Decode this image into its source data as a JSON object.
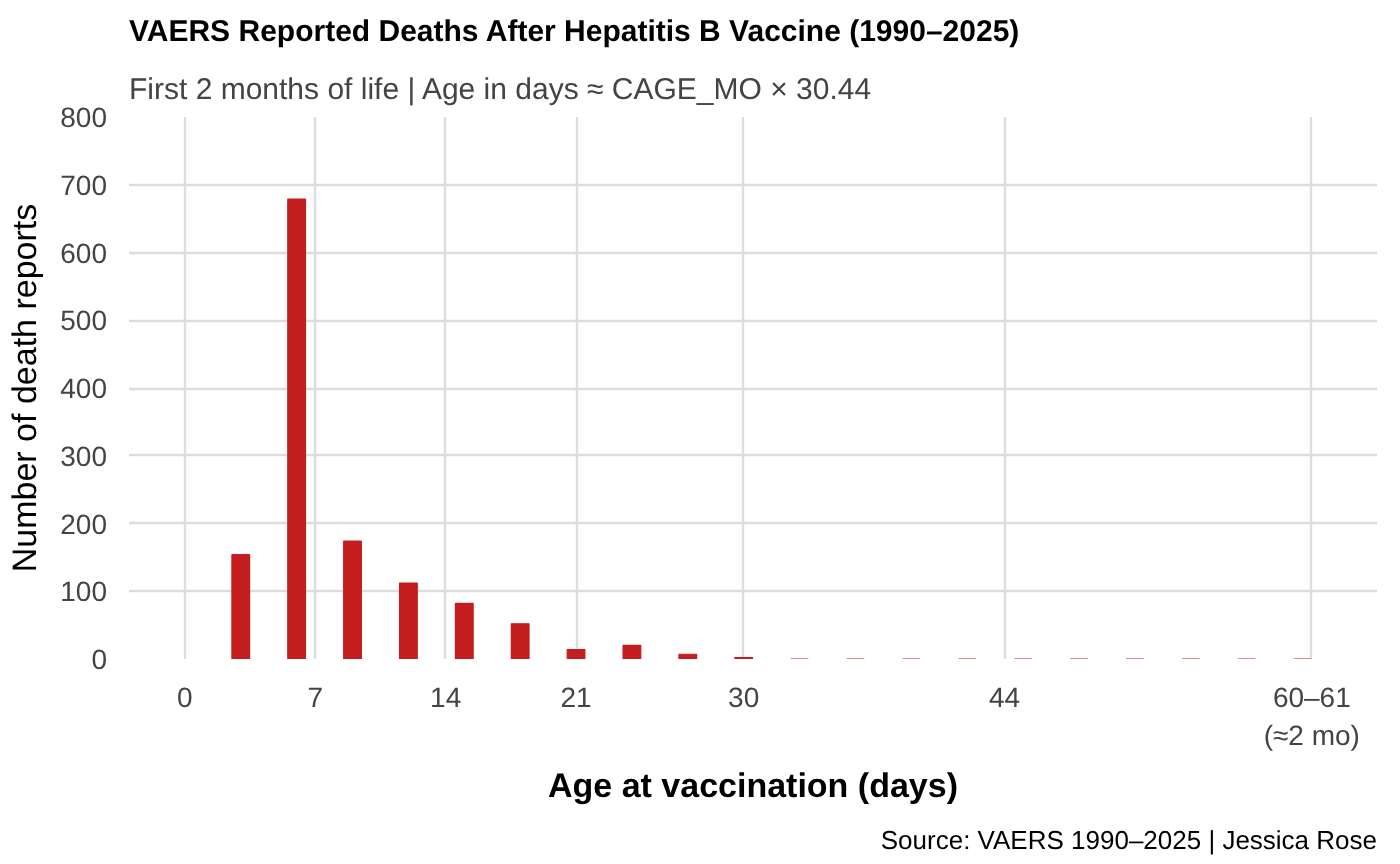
{
  "chart_data": {
    "type": "bar",
    "title": "VAERS Reported Deaths After Hepatitis B Vaccine (1990–2025)",
    "subtitle": "First 2 months of life | Age in days ≈ CAGE_MO × 30.44",
    "xlabel": "Age at vaccination (days)",
    "ylabel": "Number of death reports",
    "annotations": [
      "Source: VAERS 1990–2025 | Jessica Rose"
    ],
    "x": [
      3,
      6,
      9,
      12,
      15,
      18,
      21,
      24,
      27,
      30,
      33,
      36,
      39,
      42,
      45,
      48,
      51,
      54,
      57,
      60
    ],
    "values": [
      154,
      679,
      174,
      112,
      82,
      52,
      14,
      20,
      7,
      2,
      0,
      0,
      0,
      0,
      0,
      0,
      0,
      0,
      0,
      0
    ],
    "color": "#c41e1e",
    "xlim": [
      -3,
      64
    ],
    "xticks": [
      0,
      7,
      14,
      21,
      30,
      44,
      {
        "value": 60.5,
        "label": "60–61\n(≈2 mo)"
      }
    ],
    "ylim": [
      0,
      800
    ],
    "yticks": [
      0,
      100,
      200,
      300,
      400,
      500,
      600,
      700,
      800
    ],
    "grid": true
  }
}
